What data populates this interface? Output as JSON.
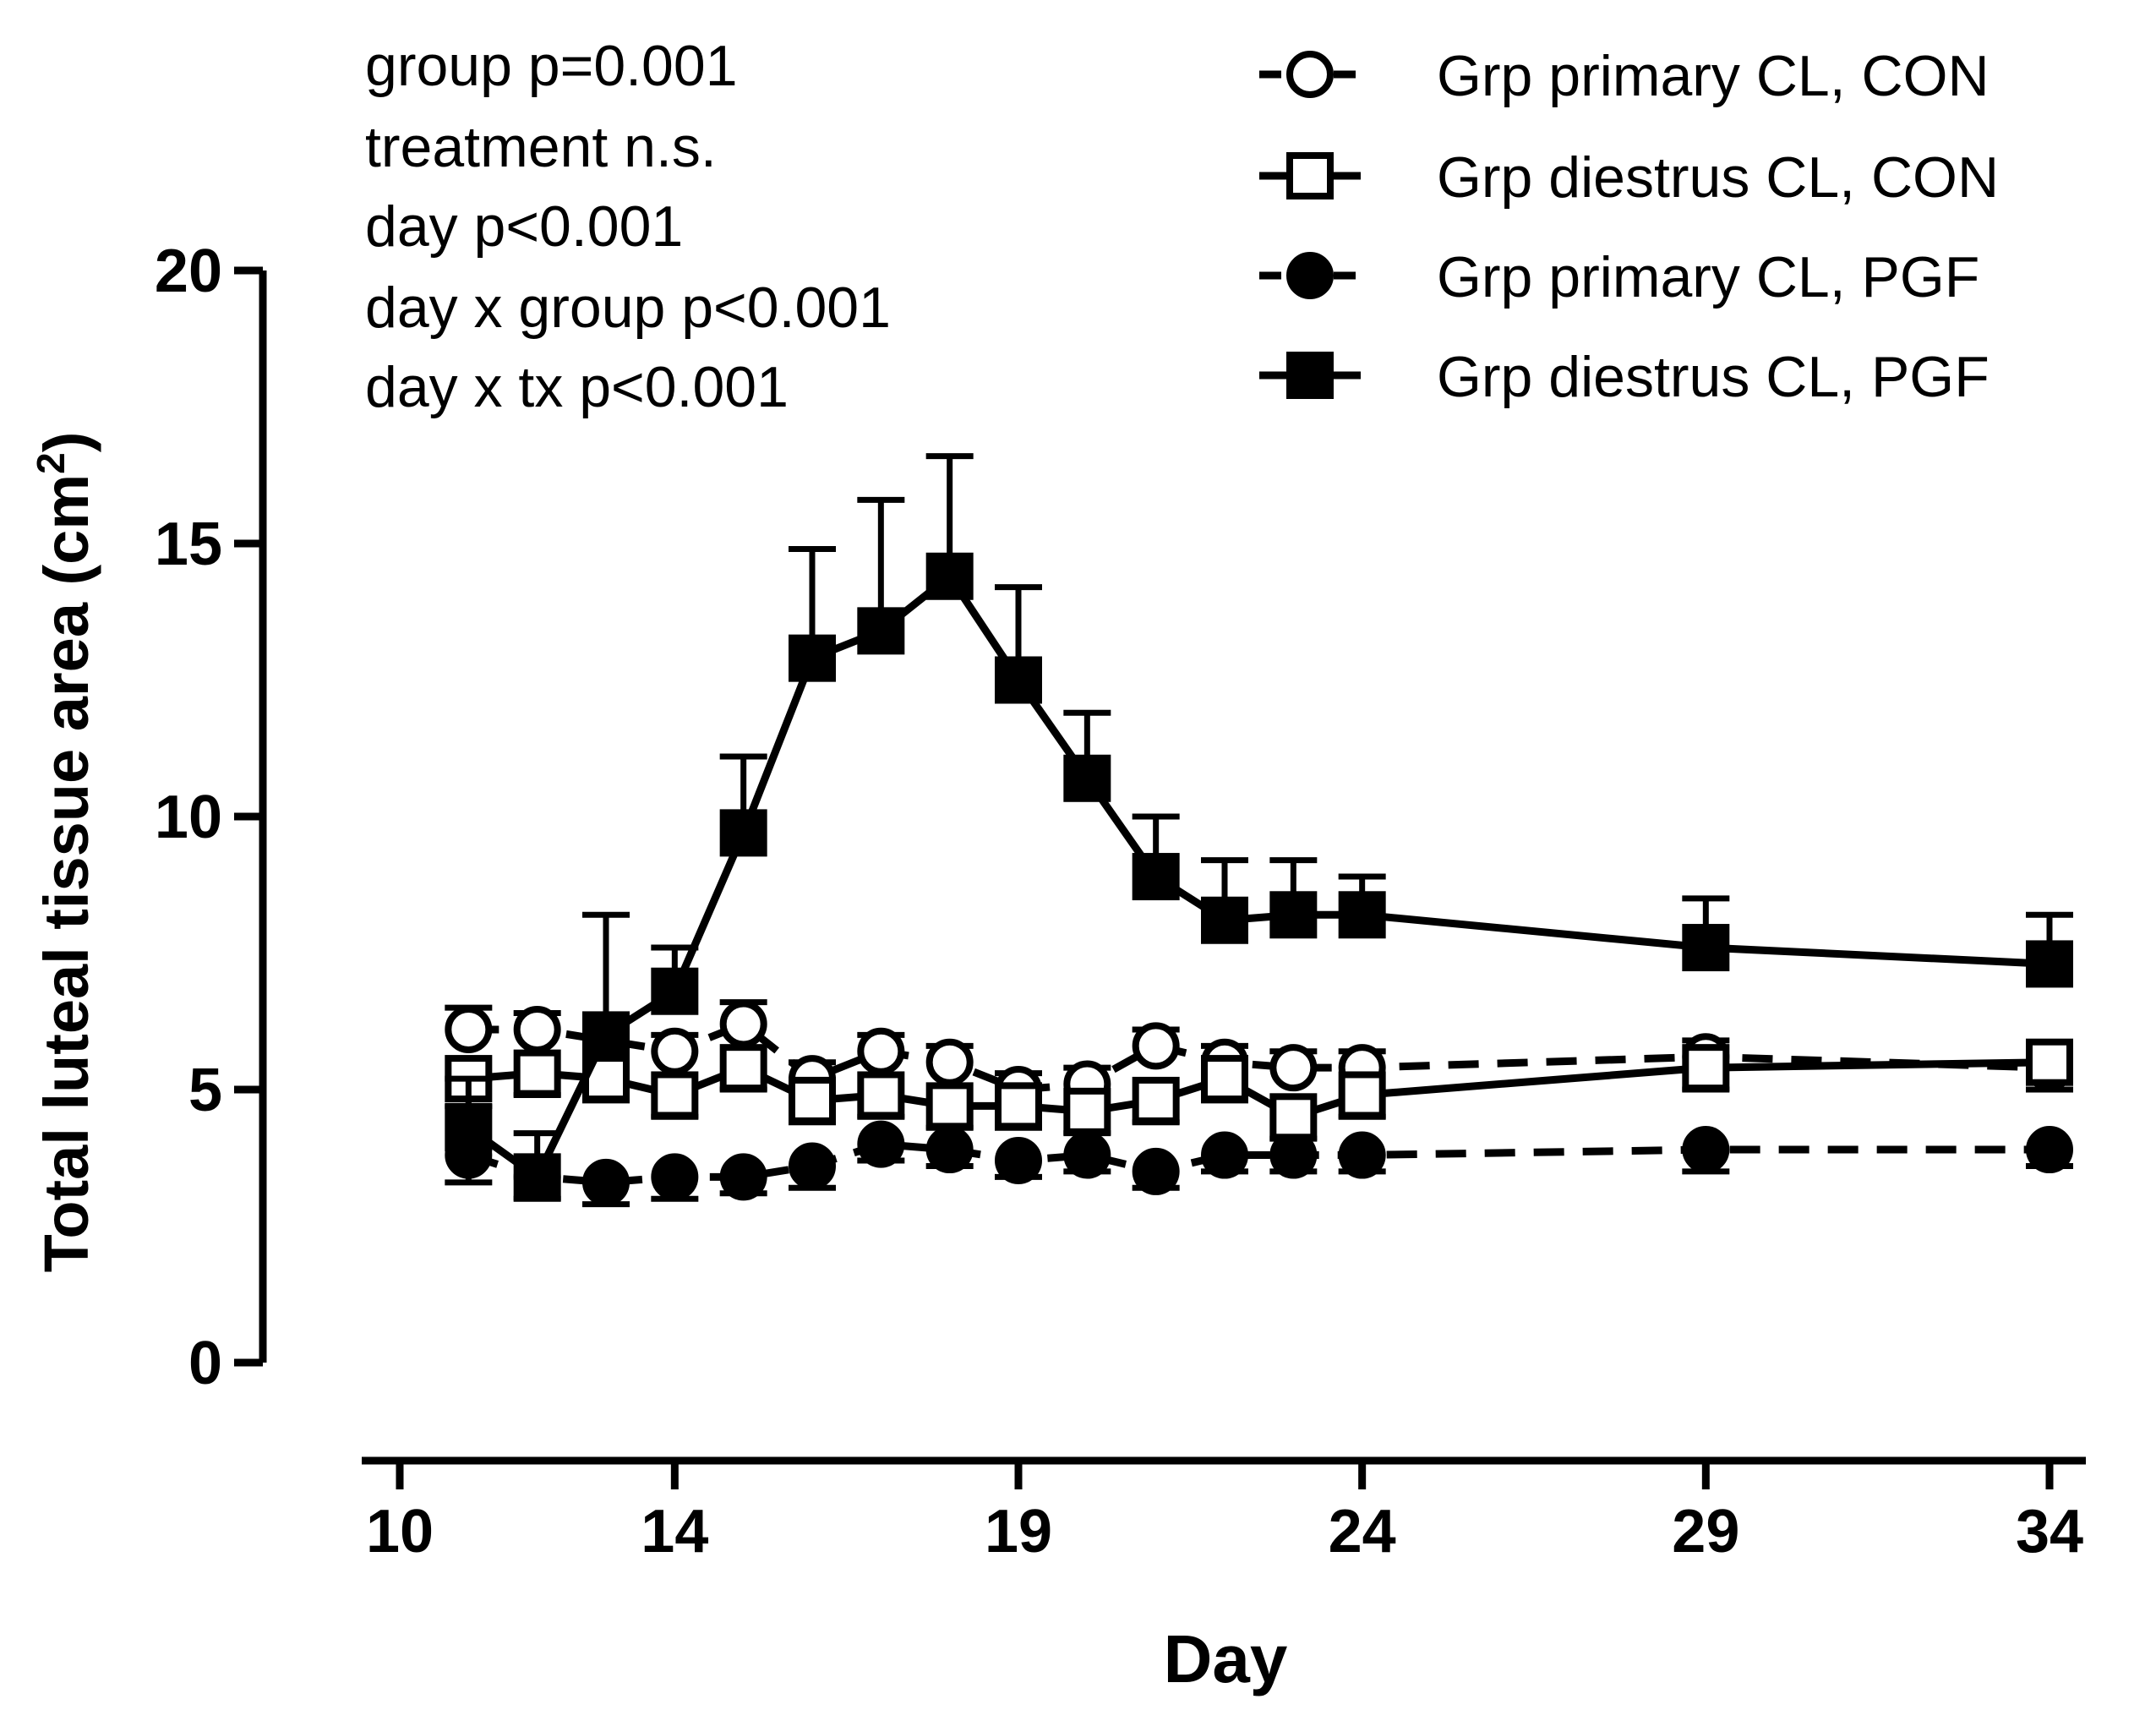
{
  "chart_data": {
    "type": "line",
    "title": "",
    "xlabel": "Day",
    "ylabel": "Total luteal tissue area (cm",
    "ylabel_superscript": "2",
    "ylabel_close": ")",
    "xlim": [
      10,
      34.5
    ],
    "ylim": [
      0,
      20
    ],
    "xticks": [
      10,
      14,
      19,
      24,
      29,
      34
    ],
    "yticks": [
      0,
      5,
      10,
      15,
      20
    ],
    "grid": false,
    "legend_position": "top-right",
    "annotations": [
      "group p=0.001",
      "treatment n.s.",
      "day p<0.001",
      "day x group p<0.001",
      "day x tx p<0.001"
    ],
    "series": [
      {
        "name": "Grp primary CL, CON",
        "marker": "circle-open",
        "line": "dashed",
        "x": [
          11,
          12,
          13,
          14,
          15,
          16,
          17,
          18,
          19,
          20,
          21,
          22,
          23,
          24,
          29,
          34
        ],
        "values": [
          6.1,
          6.1,
          5.9,
          5.7,
          6.2,
          5.2,
          5.7,
          5.5,
          5.0,
          5.1,
          5.8,
          5.5,
          5.4,
          5.4,
          5.6,
          5.4
        ],
        "errors": [
          0.4,
          0.3,
          0.4,
          0.3,
          0.4,
          0.3,
          0.3,
          0.3,
          0.3,
          0.3,
          0.3,
          0.3,
          0.3,
          0.3,
          0.3,
          0.4
        ]
      },
      {
        "name": "Grp diestrus CL, CON",
        "marker": "square-open",
        "line": "solid",
        "x": [
          11,
          12,
          13,
          14,
          15,
          16,
          17,
          18,
          19,
          20,
          21,
          22,
          23,
          24,
          29,
          34
        ],
        "values": [
          5.2,
          5.3,
          5.2,
          4.9,
          5.4,
          4.8,
          4.9,
          4.7,
          4.7,
          4.6,
          4.8,
          5.2,
          4.5,
          4.9,
          5.4,
          5.5
        ],
        "errors": [
          0.5,
          0.4,
          0.4,
          0.4,
          0.4,
          0.4,
          0.4,
          0.4,
          0.4,
          0.4,
          0.4,
          0.4,
          0.4,
          0.4,
          0.4,
          0.5
        ]
      },
      {
        "name": "Grp primary CL, PGF",
        "marker": "circle-filled",
        "line": "dashed",
        "x": [
          11,
          12,
          13,
          14,
          15,
          16,
          17,
          18,
          19,
          20,
          21,
          22,
          23,
          24,
          29,
          34
        ],
        "values": [
          3.8,
          3.4,
          3.3,
          3.4,
          3.4,
          3.6,
          4.0,
          3.9,
          3.7,
          3.8,
          3.5,
          3.8,
          3.8,
          3.8,
          3.9,
          3.9
        ],
        "errors": [
          0.5,
          0.4,
          0.4,
          0.4,
          0.3,
          0.4,
          0.3,
          0.3,
          0.3,
          0.3,
          0.3,
          0.3,
          0.3,
          0.3,
          0.4,
          0.3
        ]
      },
      {
        "name": "Grp diestrus CL, PGF",
        "marker": "square-filled",
        "line": "solid",
        "x": [
          11,
          12,
          13,
          14,
          15,
          16,
          17,
          18,
          19,
          20,
          21,
          22,
          23,
          24,
          29,
          34
        ],
        "values": [
          4.3,
          3.4,
          6.0,
          6.8,
          9.7,
          12.9,
          13.4,
          14.4,
          12.5,
          10.7,
          8.9,
          8.1,
          8.2,
          8.2,
          7.6,
          7.3
        ],
        "errors": [
          0.9,
          0.8,
          2.2,
          0.8,
          1.4,
          2.0,
          2.4,
          2.2,
          1.7,
          1.2,
          1.1,
          1.1,
          1.0,
          0.7,
          0.9,
          0.9
        ]
      }
    ]
  }
}
